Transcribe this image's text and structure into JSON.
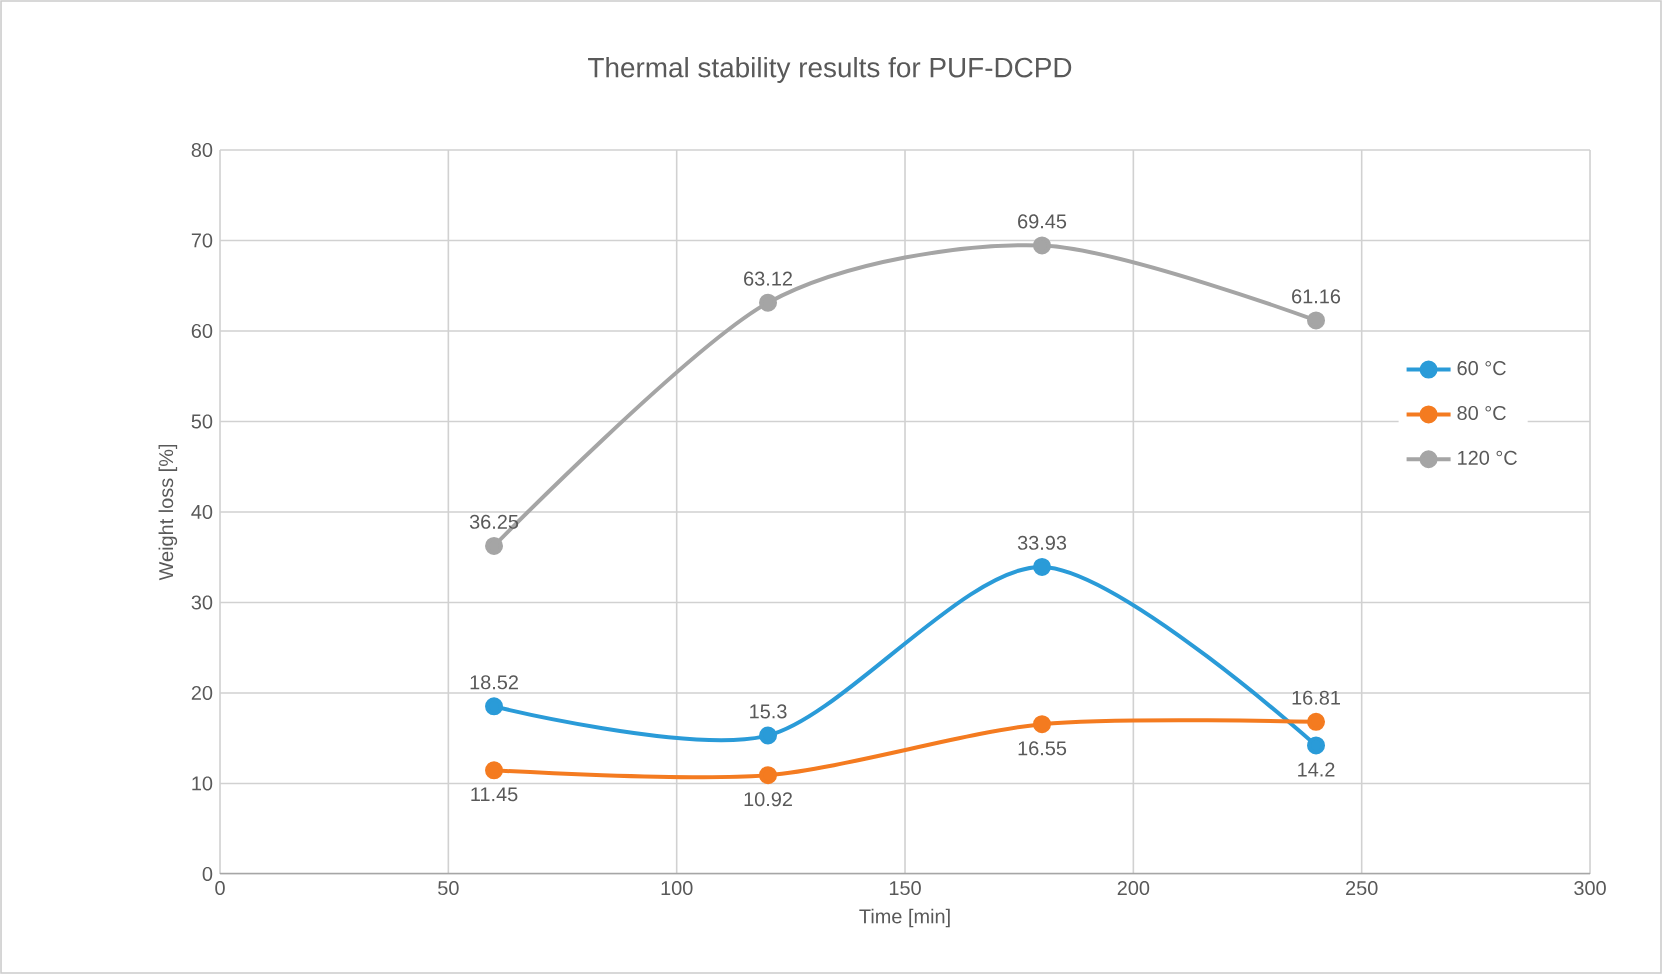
{
  "chart_data": {
    "type": "line",
    "title": "Thermal stability results for PUF-DCPD",
    "xlabel": "Time [min]",
    "ylabel": "Weight loss [%]",
    "x": [
      60,
      120,
      180,
      240
    ],
    "series": [
      {
        "name": "60 °C",
        "color": "#2a9bd8",
        "values": [
          18.52,
          15.3,
          33.93,
          14.2
        ]
      },
      {
        "name": "80 °C",
        "color": "#f47b20",
        "values": [
          11.45,
          10.92,
          16.55,
          16.81
        ]
      },
      {
        "name": "120 °C",
        "color": "#a5a5a5",
        "values": [
          36.25,
          63.12,
          69.45,
          61.16
        ]
      }
    ],
    "xlim": [
      0,
      300
    ],
    "ylim": [
      0,
      80
    ],
    "xticks": [
      0,
      50,
      100,
      150,
      200,
      250,
      300
    ],
    "yticks": [
      0,
      10,
      20,
      30,
      40,
      50,
      60,
      70,
      80
    ],
    "grid": true,
    "legend": "right",
    "marker": "circle",
    "data_labels": true
  }
}
